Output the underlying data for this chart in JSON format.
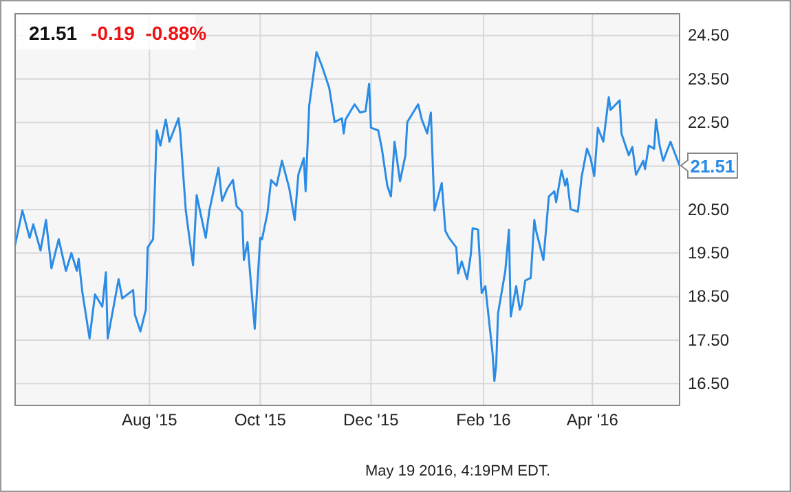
{
  "chart_data": {
    "type": "line",
    "title": "21.51",
    "subtitle": "-0.19  -0.88%",
    "x": [
      "2015-05-19",
      "2015-05-23",
      "2015-05-27",
      "2015-05-29",
      "2015-06-02",
      "2015-06-05",
      "2015-06-08",
      "2015-06-12",
      "2015-06-16",
      "2015-06-19",
      "2015-06-22",
      "2015-06-23",
      "2015-06-25",
      "2015-06-29",
      "2015-07-02",
      "2015-07-06",
      "2015-07-08",
      "2015-07-09",
      "2015-07-15",
      "2015-07-17",
      "2015-07-23",
      "2015-07-24",
      "2015-07-27",
      "2015-07-30",
      "2015-07-31",
      "2015-08-03",
      "2015-08-05",
      "2015-08-07",
      "2015-08-10",
      "2015-08-12",
      "2015-08-17",
      "2015-08-18",
      "2015-08-21",
      "2015-08-25",
      "2015-08-27",
      "2015-09-01",
      "2015-09-03",
      "2015-09-08",
      "2015-09-10",
      "2015-09-13",
      "2015-09-16",
      "2015-09-18",
      "2015-09-21",
      "2015-09-22",
      "2015-09-24",
      "2015-09-28",
      "2015-10-01",
      "2015-10-02",
      "2015-10-05",
      "2015-10-07",
      "2015-10-10",
      "2015-10-13",
      "2015-10-17",
      "2015-10-20",
      "2015-10-22",
      "2015-10-25",
      "2015-10-26",
      "2015-10-28",
      "2015-11-01",
      "2015-11-04",
      "2015-11-08",
      "2015-11-11",
      "2015-11-15",
      "2015-11-16",
      "2015-11-17",
      "2015-11-22",
      "2015-11-25",
      "2015-11-28",
      "2015-11-30",
      "2015-12-01",
      "2015-12-05",
      "2015-12-07",
      "2015-12-10",
      "2015-12-12",
      "2015-12-14",
      "2015-12-17",
      "2015-12-20",
      "2015-12-21",
      "2015-12-27",
      "2015-12-29",
      "2016-01-01",
      "2016-01-03",
      "2016-01-05",
      "2016-01-09",
      "2016-01-11",
      "2016-01-13",
      "2016-01-17",
      "2016-01-18",
      "2016-01-20",
      "2016-01-23",
      "2016-01-25",
      "2016-01-26",
      "2016-01-29",
      "2016-01-31",
      "2016-02-02",
      "2016-02-06",
      "2016-02-07",
      "2016-02-08",
      "2016-02-09",
      "2016-02-13",
      "2016-02-15",
      "2016-02-16",
      "2016-02-19",
      "2016-02-21",
      "2016-02-22",
      "2016-02-24",
      "2016-02-27",
      "2016-02-29",
      "2016-03-01",
      "2016-03-05",
      "2016-03-08",
      "2016-03-11",
      "2016-03-12",
      "2016-03-15",
      "2016-03-17",
      "2016-03-18",
      "2016-03-20",
      "2016-03-24",
      "2016-03-26",
      "2016-03-29",
      "2016-03-31",
      "2016-04-02",
      "2016-04-04",
      "2016-04-07",
      "2016-04-10",
      "2016-04-11",
      "2016-04-16",
      "2016-04-17",
      "2016-04-21",
      "2016-04-23",
      "2016-04-25",
      "2016-04-29",
      "2016-04-30",
      "2016-05-02",
      "2016-05-05",
      "2016-05-06",
      "2016-05-08",
      "2016-05-10",
      "2016-05-14",
      "2016-05-19"
    ],
    "series": [
      {
        "color": "#2b8ce6",
        "values": [
          19.69,
          20.48,
          19.85,
          20.16,
          19.56,
          20.26,
          19.15,
          19.82,
          19.09,
          19.5,
          19.09,
          19.37,
          18.61,
          17.54,
          18.55,
          18.27,
          19.06,
          17.54,
          18.9,
          18.46,
          18.65,
          18.08,
          17.7,
          18.2,
          19.63,
          19.82,
          22.32,
          21.97,
          22.57,
          22.06,
          22.6,
          22.25,
          20.48,
          19.22,
          20.83,
          19.85,
          20.48,
          21.46,
          20.7,
          20.99,
          21.18,
          20.58,
          20.45,
          19.34,
          19.75,
          17.76,
          19.85,
          19.82,
          20.42,
          21.18,
          21.05,
          21.62,
          20.99,
          20.26,
          21.3,
          21.68,
          20.92,
          22.89,
          24.12,
          23.8,
          23.3,
          22.51,
          22.6,
          22.25,
          22.57,
          22.92,
          22.73,
          22.76,
          23.39,
          22.38,
          22.32,
          21.9,
          21.05,
          20.8,
          22.06,
          21.15,
          21.75,
          22.51,
          22.92,
          22.57,
          22.25,
          22.73,
          20.48,
          21.11,
          20.01,
          19.85,
          19.63,
          19.03,
          19.31,
          18.9,
          19.47,
          20.07,
          20.04,
          18.58,
          18.74,
          17.19,
          16.56,
          16.94,
          18.11,
          19.09,
          20.04,
          18.04,
          18.74,
          18.2,
          18.3,
          18.87,
          18.93,
          20.26,
          20.01,
          19.34,
          20.8,
          20.92,
          20.67,
          21.4,
          21.05,
          21.21,
          20.51,
          20.45,
          21.24,
          21.9,
          21.68,
          21.27,
          22.38,
          22.06,
          23.08,
          22.79,
          23.01,
          22.25,
          21.75,
          21.94,
          21.3,
          21.62,
          21.43,
          21.97,
          21.9,
          22.57,
          21.97,
          21.62,
          22.06,
          21.51
        ]
      }
    ],
    "xlim": [
      "2015-05-19",
      "2016-05-19"
    ],
    "xticks": [
      {
        "value": "2015-08-01",
        "label": "Aug '15"
      },
      {
        "value": "2015-10-01",
        "label": "Oct '15"
      },
      {
        "value": "2015-12-01",
        "label": "Dec '15"
      },
      {
        "value": "2016-02-01",
        "label": "Feb '16"
      },
      {
        "value": "2016-04-01",
        "label": "Apr '16"
      }
    ],
    "ylim": [
      16,
      25
    ],
    "yticks": [
      {
        "value": 16.5,
        "label": "16.50"
      },
      {
        "value": 17.5,
        "label": "17.50"
      },
      {
        "value": 18.5,
        "label": "18.50"
      },
      {
        "value": 19.5,
        "label": "19.50"
      },
      {
        "value": 20.5,
        "label": "20.50"
      },
      {
        "value": 21.5,
        "label": null
      },
      {
        "value": 22.5,
        "label": "22.50"
      },
      {
        "value": 23.5,
        "label": "23.50"
      },
      {
        "value": 24.5,
        "label": "24.50"
      }
    ],
    "grid": true,
    "marker": "none",
    "line_style": "solid",
    "annotations": [
      {
        "text": "21.51",
        "x": "2016-05-19",
        "y": 21.51
      },
      "May 19 2016, 4:19PM EDT."
    ]
  }
}
